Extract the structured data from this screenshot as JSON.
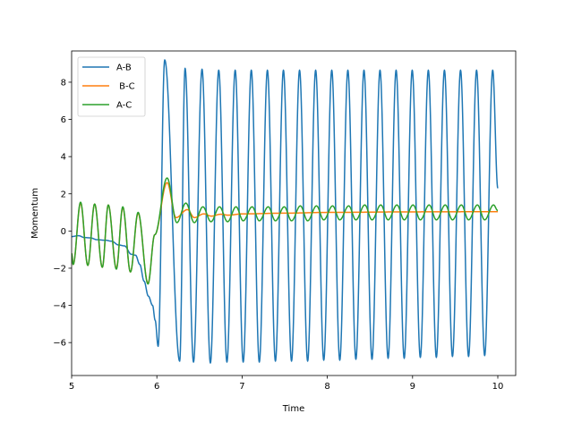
{
  "chart_data": {
    "type": "line",
    "title": "",
    "xlabel": "Time",
    "ylabel": "Momentum",
    "xlim": [
      5.0,
      10.21
    ],
    "ylim": [
      -7.77,
      9.68
    ],
    "xticks": [
      5,
      6,
      7,
      8,
      9,
      10
    ],
    "yticks": [
      -6,
      -4,
      -2,
      0,
      2,
      4,
      6,
      8
    ],
    "grid": false,
    "legend_position": "top-left",
    "interpolation_note": "points are extrema/knots of smooth curves",
    "series": [
      {
        "name": "A-B",
        "color": "#1f77b4",
        "points": [
          [
            5.0,
            -0.3
          ],
          [
            5.08,
            -0.25
          ],
          [
            5.15,
            -0.35
          ],
          [
            5.22,
            -0.37
          ],
          [
            5.3,
            -0.47
          ],
          [
            5.4,
            -0.5
          ],
          [
            5.47,
            -0.55
          ],
          [
            5.55,
            -0.75
          ],
          [
            5.62,
            -0.8
          ],
          [
            5.7,
            -1.25
          ],
          [
            5.75,
            -1.3
          ],
          [
            5.8,
            -1.8
          ],
          [
            5.85,
            -2.7
          ],
          [
            5.9,
            -3.5
          ],
          [
            5.95,
            -4.0
          ],
          [
            5.98,
            -4.8
          ],
          [
            6.015,
            -6.2
          ],
          [
            6.092,
            9.2
          ],
          [
            6.268,
            -7.0
          ],
          [
            6.331,
            8.75
          ],
          [
            6.43,
            -7.05
          ],
          [
            6.53,
            8.7
          ],
          [
            6.628,
            -7.1
          ],
          [
            6.726,
            8.65
          ],
          [
            6.822,
            -7.05
          ],
          [
            6.919,
            8.65
          ],
          [
            7.013,
            -7.05
          ],
          [
            7.108,
            8.65
          ],
          [
            7.202,
            -7.05
          ],
          [
            7.297,
            8.65
          ],
          [
            7.391,
            -7.0
          ],
          [
            7.485,
            8.65
          ],
          [
            7.58,
            -7.0
          ],
          [
            7.674,
            8.65
          ],
          [
            7.769,
            -7.0
          ],
          [
            7.863,
            8.65
          ],
          [
            7.958,
            -6.95
          ],
          [
            8.052,
            8.65
          ],
          [
            8.146,
            -6.95
          ],
          [
            8.241,
            8.65
          ],
          [
            8.335,
            -6.9
          ],
          [
            8.43,
            8.65
          ],
          [
            8.524,
            -6.9
          ],
          [
            8.618,
            8.65
          ],
          [
            8.713,
            -6.85
          ],
          [
            8.807,
            8.65
          ],
          [
            8.902,
            -6.85
          ],
          [
            8.996,
            8.65
          ],
          [
            9.091,
            -6.8
          ],
          [
            9.185,
            8.65
          ],
          [
            9.279,
            -6.8
          ],
          [
            9.374,
            8.65
          ],
          [
            9.468,
            -6.75
          ],
          [
            9.563,
            8.65
          ],
          [
            9.657,
            -6.75
          ],
          [
            9.751,
            8.65
          ],
          [
            9.846,
            -6.7
          ],
          [
            9.94,
            8.65
          ],
          [
            10.0,
            2.3
          ]
        ]
      },
      {
        "name": " B-C",
        "color": "#ff7f0e",
        "points": [
          [
            5.0,
            -1.2
          ],
          [
            5.018,
            -1.8
          ],
          [
            5.105,
            1.5
          ],
          [
            5.19,
            -1.85
          ],
          [
            5.27,
            1.45
          ],
          [
            5.36,
            -1.95
          ],
          [
            5.43,
            1.4
          ],
          [
            5.525,
            -2.0
          ],
          [
            5.6,
            1.25
          ],
          [
            5.69,
            -2.2
          ],
          [
            5.78,
            0.95
          ],
          [
            5.896,
            -2.8
          ],
          [
            5.975,
            -0.2
          ],
          [
            6.12,
            2.6
          ],
          [
            6.225,
            0.72
          ],
          [
            6.358,
            1.15
          ],
          [
            6.44,
            0.72
          ],
          [
            6.55,
            0.92
          ],
          [
            6.64,
            0.8
          ],
          [
            6.75,
            0.9
          ],
          [
            6.84,
            0.85
          ],
          [
            7.0,
            0.92
          ],
          [
            7.5,
            0.96
          ],
          [
            8.0,
            1.0
          ],
          [
            9.0,
            1.03
          ],
          [
            10.0,
            1.04
          ]
        ]
      },
      {
        "name": "A-C",
        "color": "#2ca02c",
        "points": [
          [
            5.0,
            -1.2
          ],
          [
            5.018,
            -1.8
          ],
          [
            5.105,
            1.55
          ],
          [
            5.19,
            -1.85
          ],
          [
            5.27,
            1.45
          ],
          [
            5.36,
            -1.95
          ],
          [
            5.43,
            1.4
          ],
          [
            5.525,
            -2.05
          ],
          [
            5.6,
            1.3
          ],
          [
            5.69,
            -2.2
          ],
          [
            5.78,
            1.0
          ],
          [
            5.896,
            -2.85
          ],
          [
            5.975,
            -0.2
          ],
          [
            6.12,
            2.85
          ],
          [
            6.235,
            0.45
          ],
          [
            6.34,
            1.5
          ],
          [
            6.44,
            0.45
          ],
          [
            6.54,
            1.3
          ],
          [
            6.635,
            0.5
          ],
          [
            6.735,
            1.3
          ],
          [
            6.83,
            0.5
          ],
          [
            6.929,
            1.3
          ],
          [
            7.013,
            0.55
          ],
          [
            7.118,
            1.3
          ],
          [
            7.202,
            0.55
          ],
          [
            7.307,
            1.3
          ],
          [
            7.391,
            0.55
          ],
          [
            7.495,
            1.3
          ],
          [
            7.58,
            0.55
          ],
          [
            7.684,
            1.35
          ],
          [
            7.769,
            0.55
          ],
          [
            7.873,
            1.35
          ],
          [
            7.958,
            0.6
          ],
          [
            8.062,
            1.35
          ],
          [
            8.146,
            0.6
          ],
          [
            8.251,
            1.35
          ],
          [
            8.335,
            0.6
          ],
          [
            8.44,
            1.4
          ],
          [
            8.524,
            0.6
          ],
          [
            8.628,
            1.4
          ],
          [
            8.713,
            0.6
          ],
          [
            8.817,
            1.4
          ],
          [
            8.902,
            0.6
          ],
          [
            9.006,
            1.4
          ],
          [
            9.091,
            0.6
          ],
          [
            9.195,
            1.4
          ],
          [
            9.279,
            0.6
          ],
          [
            9.384,
            1.4
          ],
          [
            9.468,
            0.6
          ],
          [
            9.573,
            1.4
          ],
          [
            9.657,
            0.6
          ],
          [
            9.761,
            1.4
          ],
          [
            9.846,
            0.6
          ],
          [
            9.95,
            1.4
          ],
          [
            10.0,
            1.1
          ]
        ]
      }
    ]
  }
}
